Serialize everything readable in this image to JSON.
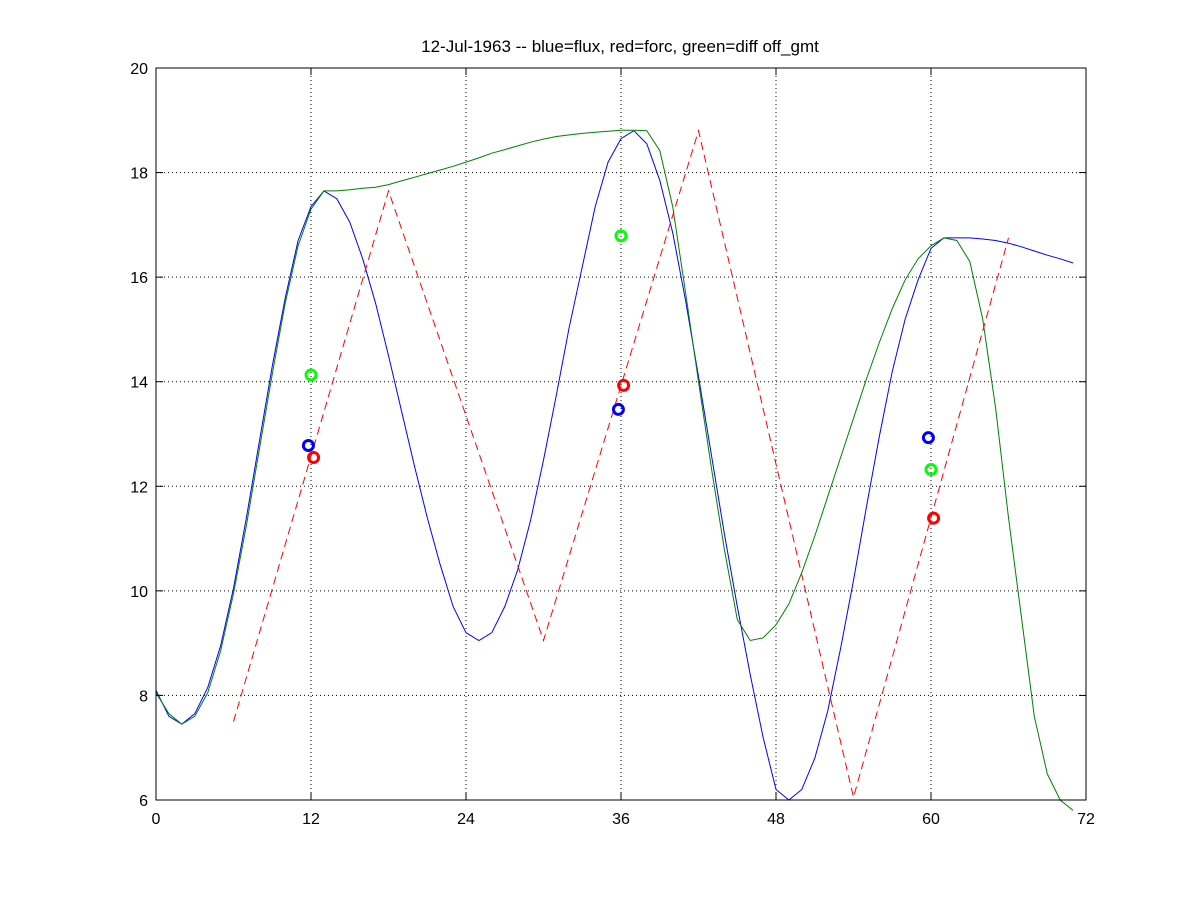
{
  "chart_data": {
    "type": "line",
    "title": "12-Jul-1963 -- blue=flux, red=forc, green=diff off_gmt",
    "xlabel": "",
    "ylabel": "",
    "xlim": [
      0,
      72
    ],
    "ylim": [
      6,
      20
    ],
    "xticks": [
      0,
      12,
      24,
      36,
      48,
      60,
      72
    ],
    "yticks": [
      6,
      8,
      10,
      12,
      14,
      16,
      18,
      20
    ],
    "grid": true,
    "grid_style": "dotted",
    "legend": "none",
    "series": [
      {
        "color": "#0000ff",
        "style": "solid",
        "x": [
          0,
          1,
          2,
          3,
          4,
          5,
          6,
          7,
          8,
          9,
          10,
          11,
          12,
          13,
          14,
          15,
          16,
          17,
          18,
          19,
          20,
          21,
          22,
          23,
          24,
          25,
          26,
          27,
          28,
          29,
          30,
          31,
          32,
          33,
          34,
          35,
          36,
          37,
          38,
          39,
          40,
          41,
          42,
          43,
          44,
          45,
          46,
          47,
          48,
          49,
          50,
          51,
          52,
          53,
          54,
          55,
          56,
          57,
          58,
          59,
          60,
          61,
          62,
          63,
          64,
          65,
          66,
          67,
          68,
          69,
          70,
          71
        ],
        "y": [
          8.1,
          7.6,
          7.45,
          7.65,
          8.15,
          8.95,
          10.05,
          11.4,
          12.85,
          14.3,
          15.6,
          16.7,
          17.35,
          17.65,
          17.5,
          17.05,
          16.35,
          15.5,
          14.5,
          13.45,
          12.4,
          11.4,
          10.5,
          9.7,
          9.2,
          9.05,
          9.2,
          9.7,
          10.4,
          11.35,
          12.5,
          13.75,
          15.05,
          16.2,
          17.35,
          18.2,
          18.65,
          18.8,
          18.55,
          17.85,
          16.85,
          15.55,
          14.1,
          12.6,
          11.1,
          9.7,
          8.4,
          7.2,
          6.2,
          6.0,
          6.2,
          6.8,
          7.7,
          8.9,
          10.2,
          11.6,
          12.95,
          14.2,
          15.2,
          15.95,
          16.55,
          16.75,
          16.75,
          16.75,
          16.73,
          16.7,
          16.65,
          16.58,
          16.5,
          16.42,
          16.35,
          16.27
        ]
      },
      {
        "color": "#008000",
        "style": "solid",
        "x": [
          0,
          1,
          2,
          3,
          4,
          5,
          6,
          7,
          8,
          9,
          10,
          11,
          12,
          13,
          14,
          15,
          16,
          17,
          18,
          19,
          20,
          21,
          22,
          23,
          24,
          25,
          26,
          27,
          28,
          29,
          30,
          31,
          32,
          33,
          34,
          35,
          36,
          37,
          38,
          39,
          40,
          41,
          42,
          43,
          44,
          45,
          46,
          47,
          48,
          49,
          50,
          51,
          52,
          53,
          54,
          55,
          56,
          57,
          58,
          59,
          60,
          61,
          62,
          63,
          64,
          65,
          66,
          67,
          68,
          69,
          70,
          71
        ],
        "y": [
          8.05,
          7.65,
          7.45,
          7.6,
          8.05,
          8.85,
          9.95,
          11.25,
          12.7,
          14.15,
          15.5,
          16.6,
          17.3,
          17.65,
          17.65,
          17.67,
          17.7,
          17.72,
          17.77,
          17.84,
          17.91,
          17.98,
          18.05,
          18.12,
          18.2,
          18.28,
          18.37,
          18.44,
          18.51,
          18.58,
          18.64,
          18.69,
          18.72,
          18.75,
          18.77,
          18.79,
          18.81,
          18.81,
          18.8,
          18.42,
          17.35,
          15.7,
          14.0,
          12.35,
          10.8,
          9.45,
          9.05,
          9.1,
          9.35,
          9.75,
          10.35,
          11.05,
          11.8,
          12.55,
          13.3,
          14.05,
          14.75,
          15.4,
          15.95,
          16.35,
          16.6,
          16.75,
          16.7,
          16.3,
          15.2,
          13.5,
          11.4,
          9.5,
          7.6,
          6.5,
          6.0,
          5.8
        ]
      },
      {
        "color": "#ff0000",
        "style": "dashed",
        "x": [
          6,
          18,
          30,
          42,
          54,
          66
        ],
        "y": [
          7.5,
          17.65,
          9.05,
          18.8,
          6.05,
          16.75
        ]
      }
    ],
    "markers": [
      {
        "color": "#0000ff",
        "x": 11.8,
        "y": 12.78
      },
      {
        "color": "#ff0000",
        "x": 12.2,
        "y": 12.55
      },
      {
        "color": "#00ff00",
        "x": 12.0,
        "y": 14.13
      },
      {
        "color": "#0000ff",
        "x": 35.8,
        "y": 13.47
      },
      {
        "color": "#ff0000",
        "x": 36.2,
        "y": 13.93
      },
      {
        "color": "#00ff00",
        "x": 36.0,
        "y": 16.79
      },
      {
        "color": "#0000ff",
        "x": 59.8,
        "y": 12.93
      },
      {
        "color": "#ff0000",
        "x": 60.2,
        "y": 11.39
      },
      {
        "color": "#00ff00",
        "x": 60.0,
        "y": 12.32
      }
    ]
  }
}
